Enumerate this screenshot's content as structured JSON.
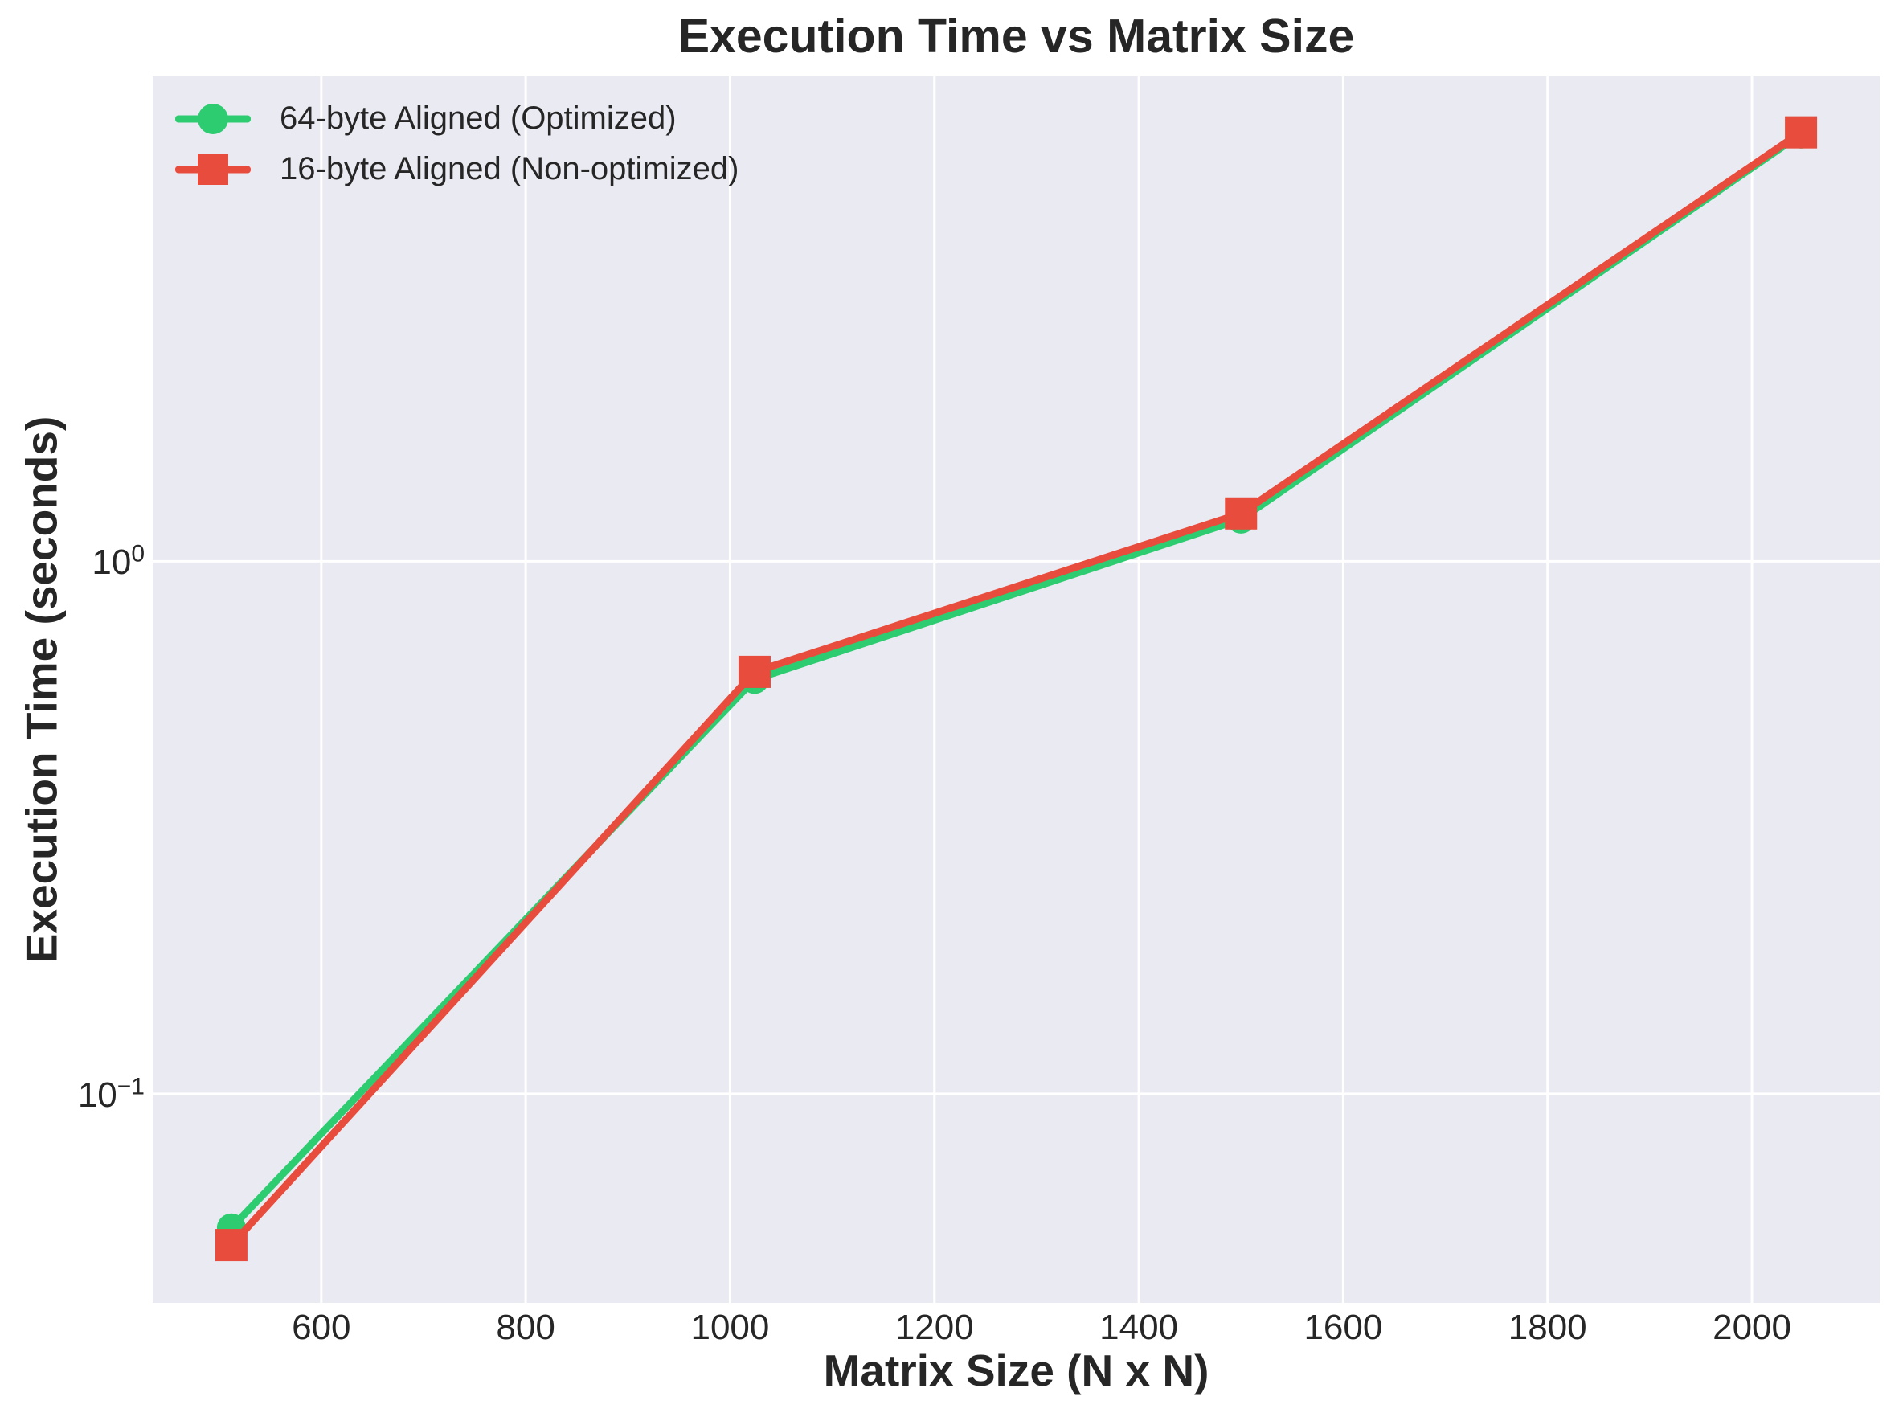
{
  "chart_data": {
    "type": "line",
    "title": "Execution Time vs Matrix Size",
    "xlabel": "Matrix Size (N x N)",
    "ylabel": "Execution Time (seconds)",
    "x": [
      512,
      1024,
      1500,
      2048
    ],
    "series": [
      {
        "name": "64-byte Aligned (Optimized)",
        "values": [
          0.056,
          0.6,
          1.2,
          6.34
        ],
        "color": "#2ecc71",
        "marker": "circle"
      },
      {
        "name": "16-byte Aligned (Non-optimized)",
        "values": [
          0.052,
          0.62,
          1.23,
          6.39
        ],
        "color": "#e74c3c",
        "marker": "square"
      }
    ],
    "xlim": [
      435,
      2125
    ],
    "ylim": [
      0.0405,
      8.14
    ],
    "yscale": "log",
    "xticks": [
      600,
      800,
      1000,
      1200,
      1400,
      1600,
      1800,
      2000
    ],
    "yticks": [
      {
        "base": "10",
        "exp": "0",
        "value": 1
      },
      {
        "base": "10",
        "exp": "−1",
        "value": 0.1
      }
    ],
    "grid": true,
    "legend_position": "upper left",
    "plot_bg": "#eaeaf2",
    "grid_color": "#ffffff",
    "text_color": "#262626"
  }
}
